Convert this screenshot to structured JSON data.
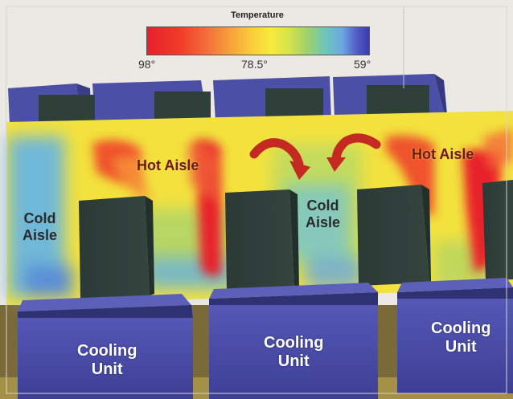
{
  "legend": {
    "title": "Temperature",
    "ticks": [
      "98°",
      "78.5°",
      "59°"
    ]
  },
  "labels": {
    "hot_aisle_left": "Hot Aisle",
    "hot_aisle_right": "Hot Aisle",
    "cold_aisle_left_line1": "Cold",
    "cold_aisle_left_line2": "Aisle",
    "cold_aisle_center_line1": "Cold",
    "cold_aisle_center_line2": "Aisle",
    "cooling_unit_1_line1": "Cooling",
    "cooling_unit_1_line2": "Unit",
    "cooling_unit_2_line1": "Cooling",
    "cooling_unit_2_line2": "Unit",
    "cooling_unit_3_line1": "Cooling",
    "cooling_unit_3_line2": "Unit"
  },
  "colors": {
    "hot": "#e8202c",
    "warm": "#f5ec3d",
    "cold": "#6aa8e0",
    "rack": "#2f3f3a",
    "cooling_unit": "#4a4fa8",
    "arrow": "#c42a22"
  }
}
